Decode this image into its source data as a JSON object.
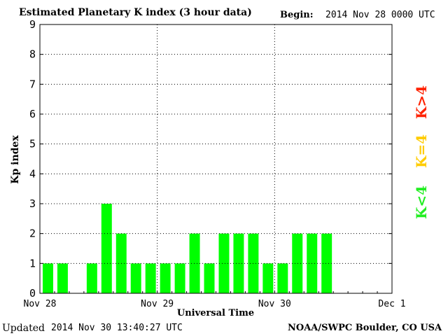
{
  "header": {
    "title": "Estimated Planetary K index (3 hour data)",
    "begin_label": "Begin:",
    "begin_value": "2014 Nov 28 0000 UTC"
  },
  "footer": {
    "updated_label": "Updated",
    "updated_value": "2014 Nov 30 13:40:27 UTC",
    "credit": "NOAA/SWPC Boulder, CO USA"
  },
  "legend": [
    {
      "label": "K>4",
      "color": "#ff2200"
    },
    {
      "label": "K=4",
      "color": "#ffcc00"
    },
    {
      "label": "K<4",
      "color": "#22ee22"
    }
  ],
  "chart_data": {
    "type": "bar",
    "title": "Estimated Planetary K index (3 hour data)",
    "xlabel": "Universal Time",
    "ylabel": "Kp index",
    "ylim": [
      0,
      9
    ],
    "yticks": [
      "0",
      "1",
      "2",
      "3",
      "4",
      "5",
      "6",
      "7",
      "8",
      "9"
    ],
    "xticks": [
      "Nov 28",
      "Nov 29",
      "Nov 30",
      "Dec 1"
    ],
    "grid": true,
    "bar_color": "#00ff00",
    "slots_total": 24,
    "values": [
      1,
      1,
      0,
      1,
      3,
      2,
      1,
      1,
      1,
      1,
      2,
      1,
      2,
      2,
      2,
      1,
      1,
      2,
      2,
      2
    ]
  }
}
